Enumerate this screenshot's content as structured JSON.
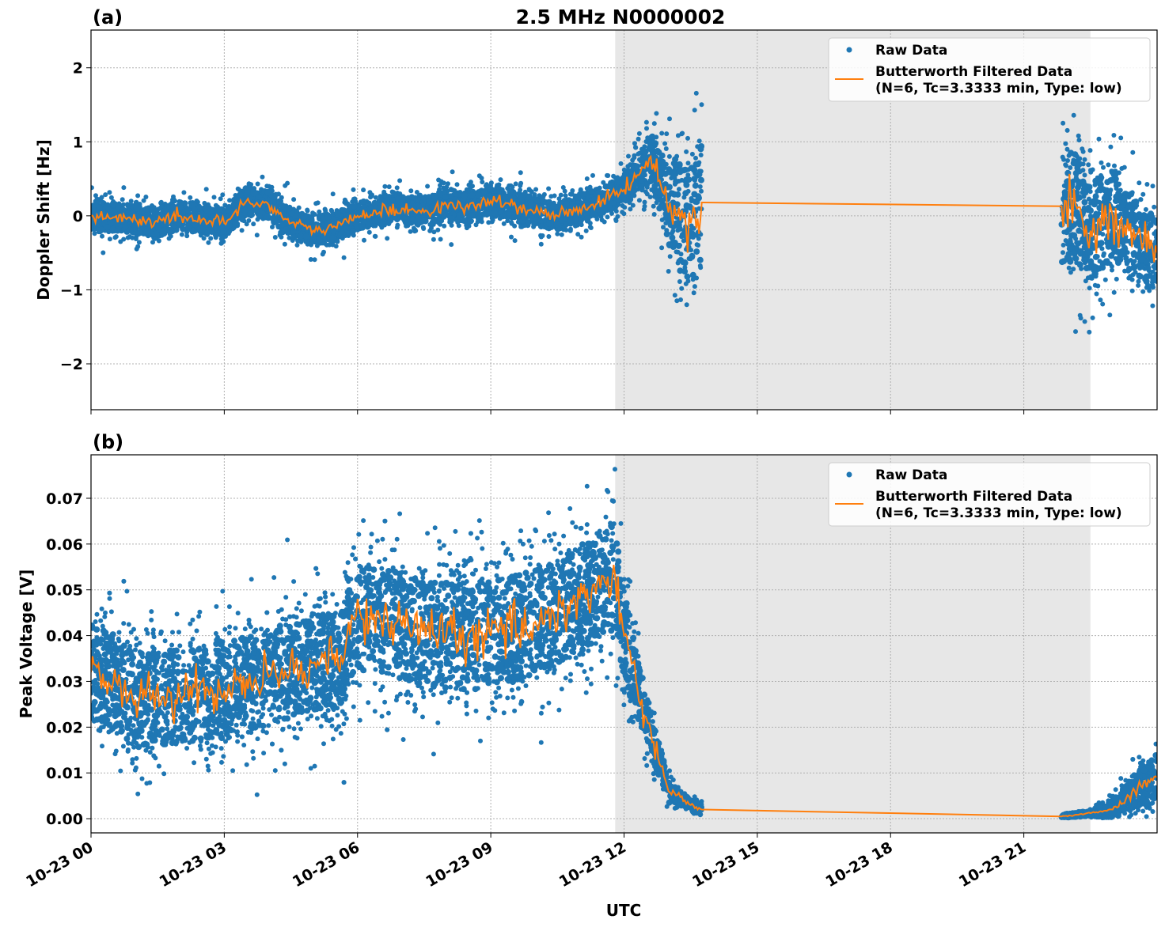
{
  "chart_data": {
    "type": "scatter",
    "title": "2.5 MHz N0000002",
    "xlabel": "UTC",
    "x_unit": "hours since 10-23 00",
    "xlim": [
      0,
      24
    ],
    "x_ticks": [
      0,
      3,
      6,
      9,
      12,
      15,
      18,
      21
    ],
    "x_tick_labels": [
      "10-23 00",
      "10-23 03",
      "10-23 06",
      "10-23 09",
      "10-23 12",
      "10-23 15",
      "10-23 18",
      "10-23 21"
    ],
    "shaded_region": [
      11.8,
      22.5
    ],
    "grid": true,
    "colors": {
      "raw": "#1f77b4",
      "filtered": "#ff7f0e",
      "shade": "#e7e7e7"
    },
    "panels": [
      {
        "label": "(a)",
        "ylabel": "Doppler Shift [Hz]",
        "ylim": [
          -2.62,
          2.51
        ],
        "y_ticks": [
          -2,
          -1,
          0,
          1,
          2
        ],
        "y_tick_labels": [
          "−2",
          "−1",
          "0",
          "1",
          "2"
        ],
        "legend": {
          "position": "top-right",
          "raw_label": "Raw Data",
          "filtered_label_1": "Butterworth Filtered Data",
          "filtered_label_2": "(N=6, Tc=3.3333 min, Type: low)"
        },
        "filtered": {
          "x": [
            0,
            0.5,
            1,
            1.5,
            2,
            2.5,
            3,
            3.5,
            4,
            4.5,
            5,
            5.5,
            6,
            6.5,
            7,
            7.5,
            8,
            8.5,
            9,
            9.5,
            10,
            10.5,
            11,
            11.5,
            12,
            12.3,
            12.6,
            12.9,
            13.2,
            13.5,
            13.75,
            21.85,
            22.2,
            22.5,
            23,
            23.5,
            24
          ],
          "y": [
            0,
            -0.02,
            -0.05,
            -0.08,
            0.0,
            -0.05,
            -0.1,
            0.2,
            0.15,
            -0.1,
            -0.2,
            -0.15,
            0.0,
            0.05,
            0.1,
            0.05,
            0.15,
            0.1,
            0.2,
            0.15,
            0.05,
            0.0,
            0.1,
            0.2,
            0.35,
            0.55,
            0.8,
            0.3,
            0.0,
            -0.1,
            0.18,
            0.13,
            0.1,
            -0.2,
            0.0,
            -0.3,
            -0.5
          ]
        },
        "raw_spread": {
          "x": [
            0,
            11.8,
            12.2,
            12.8,
            13.2,
            13.75,
            21.85,
            24
          ],
          "sd": [
            0.14,
            0.14,
            0.18,
            0.3,
            0.6,
            0.6,
            0.6,
            0.35
          ]
        },
        "data_gap": [
          13.75,
          21.85
        ]
      },
      {
        "label": "(b)",
        "ylabel": "Peak Voltage [V]",
        "ylim": [
          -0.0031,
          0.0795
        ],
        "y_ticks": [
          0,
          0.01,
          0.02,
          0.03,
          0.04,
          0.05,
          0.06,
          0.07
        ],
        "y_tick_labels": [
          "0.00",
          "0.01",
          "0.02",
          "0.03",
          "0.04",
          "0.05",
          "0.06",
          "0.07"
        ],
        "legend": {
          "position": "top-right",
          "raw_label": "Raw Data",
          "filtered_label_1": "Butterworth Filtered Data",
          "filtered_label_2": "(N=6, Tc=3.3333 min, Type: low)"
        },
        "filtered": {
          "x": [
            0,
            0.5,
            1,
            2,
            3,
            4,
            5,
            5.7,
            5.8,
            6.5,
            7,
            8,
            9,
            10,
            11,
            11.8,
            12,
            12.5,
            13,
            13.5,
            13.75,
            21.85,
            22.5,
            23,
            23.5,
            24
          ],
          "y": [
            0.032,
            0.03,
            0.026,
            0.027,
            0.028,
            0.031,
            0.034,
            0.035,
            0.043,
            0.044,
            0.042,
            0.04,
            0.04,
            0.043,
            0.048,
            0.053,
            0.04,
            0.022,
            0.006,
            0.003,
            0.002,
            0.0005,
            0.0012,
            0.002,
            0.006,
            0.009
          ]
        },
        "raw_spread": {
          "x": [
            0,
            5.7,
            5.8,
            11.8,
            12.5,
            13.2,
            13.75,
            21.85,
            22.5,
            24
          ],
          "sd": [
            0.008,
            0.008,
            0.009,
            0.009,
            0.004,
            0.0012,
            0.0008,
            0.0003,
            0.0004,
            0.004
          ]
        },
        "data_gap": [
          13.75,
          21.85
        ]
      }
    ]
  }
}
